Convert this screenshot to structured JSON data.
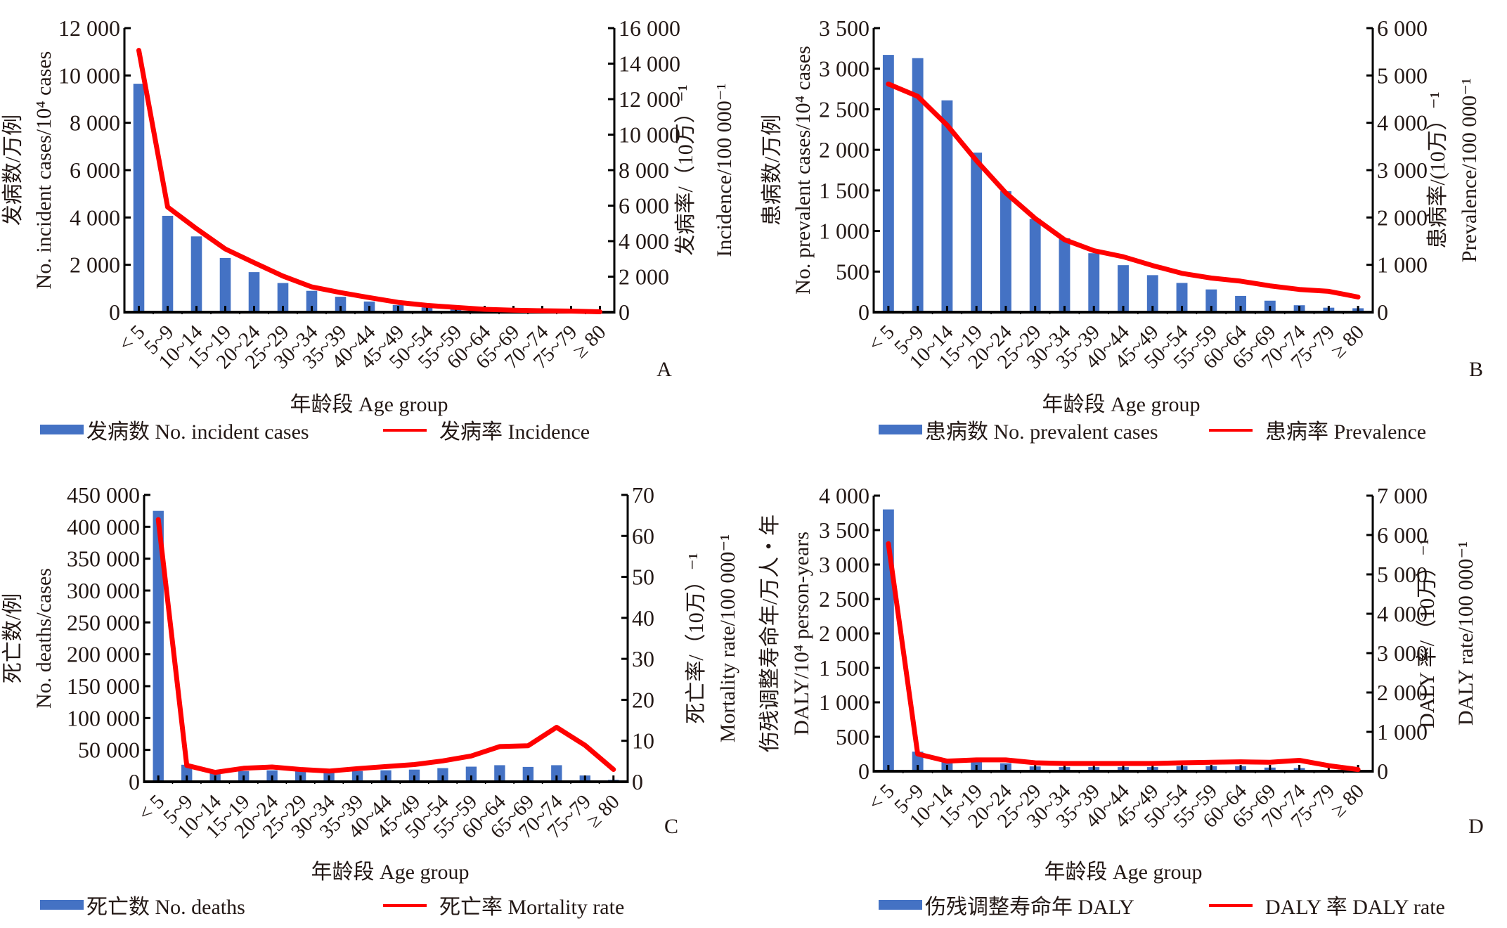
{
  "colors": {
    "bar": "#4472C4",
    "line": "#FF0000",
    "axis": "#000000",
    "text": "#231815"
  },
  "chart_data": [
    {
      "panel": "A",
      "type": "bar",
      "categories": [
        "< 5",
        "5~9",
        "10~14",
        "15~19",
        "20~24",
        "25~29",
        "30~34",
        "35~39",
        "40~44",
        "45~49",
        "50~54",
        "55~59",
        "60~64",
        "65~69",
        "70~74",
        "75~79",
        "≥ 80"
      ],
      "xlabel": "年龄段  Age group",
      "ylabel_cn": "发病数/万例",
      "ylabel_en": "No.  incident  cases/10⁴  cases",
      "y2label_cn": "发病率/（10万）⁻¹",
      "y2label_en": "Incidence/100 000⁻¹",
      "ylim": [
        0,
        12000
      ],
      "yticks": [
        0,
        2000,
        4000,
        6000,
        8000,
        10000,
        12000
      ],
      "ytick_labels": [
        "0",
        "2 000",
        "4 000",
        "6 000",
        "8 000",
        "10 000",
        "12 000"
      ],
      "y2lim": [
        0,
        16000
      ],
      "y2ticks": [
        0,
        2000,
        4000,
        6000,
        8000,
        10000,
        12000,
        14000,
        16000
      ],
      "y2tick_labels": [
        "0",
        "2 000",
        "4 000",
        "6 000",
        "8 000",
        "10 000",
        "12 000",
        "14 000",
        "16 000"
      ],
      "series": [
        {
          "name": "发病数  No.  incident  cases",
          "type": "bar",
          "axis": "left",
          "values": [
            9650,
            4070,
            3200,
            2290,
            1690,
            1230,
            900,
            650,
            450,
            300,
            200,
            130,
            80,
            50,
            30,
            20,
            10
          ]
        },
        {
          "name": "发病率  Incidence",
          "type": "line",
          "axis": "right",
          "values": [
            14750,
            5920,
            4700,
            3560,
            2790,
            2030,
            1420,
            1100,
            820,
            550,
            380,
            270,
            160,
            110,
            80,
            60,
            20
          ]
        }
      ],
      "legend_position": "bottom",
      "grid": false
    },
    {
      "panel": "B",
      "type": "bar",
      "categories": [
        "< 5",
        "5~9",
        "10~14",
        "15~19",
        "20~24",
        "25~29",
        "30~34",
        "35~39",
        "40~44",
        "45~49",
        "50~54",
        "55~59",
        "60~64",
        "65~69",
        "70~74",
        "75~79",
        "≥ 80"
      ],
      "xlabel": "年龄段  Age group",
      "ylabel_cn": "患病数/万例",
      "ylabel_en": "No.  prevalent  cases/10⁴  cases",
      "y2label_cn": "患病率/(10万）⁻¹",
      "y2label_en": "Prevalence/100 000⁻¹",
      "ylim": [
        0,
        3500
      ],
      "yticks": [
        0,
        500,
        1000,
        1500,
        2000,
        2500,
        3000,
        3500
      ],
      "ytick_labels": [
        "0",
        "500",
        "1 000",
        "1 500",
        "2 000",
        "2 500",
        "3 000",
        "3 500"
      ],
      "y2lim": [
        0,
        6000
      ],
      "y2ticks": [
        0,
        1000,
        2000,
        3000,
        4000,
        5000,
        6000
      ],
      "y2tick_labels": [
        "0",
        "1 000",
        "2 000",
        "3 000",
        "4 000",
        "5 000",
        "6 000"
      ],
      "series": [
        {
          "name": "患病数  No.  prevalent  cases",
          "type": "bar",
          "axis": "left",
          "values": [
            3170,
            3130,
            2610,
            1966,
            1490,
            1150,
            910,
            726,
            579,
            456,
            360,
            280,
            200,
            141,
            85,
            55,
            48
          ]
        },
        {
          "name": "患病率  Prevalence",
          "type": "line",
          "axis": "right",
          "values": [
            4820,
            4560,
            3950,
            3200,
            2520,
            1980,
            1530,
            1300,
            1170,
            985,
            820,
            720,
            655,
            555,
            480,
            440,
            320
          ]
        }
      ],
      "legend_position": "bottom",
      "grid": false
    },
    {
      "panel": "C",
      "type": "bar",
      "categories": [
        "< 5",
        "5~9",
        "10~14",
        "15~19",
        "20~24",
        "25~29",
        "30~34",
        "35~39",
        "40~44",
        "45~49",
        "50~54",
        "55~59",
        "60~64",
        "65~69",
        "70~74",
        "75~79",
        "≥ 80"
      ],
      "xlabel": "年龄段  Age group",
      "ylabel_cn": "死亡数/例",
      "ylabel_en": "No.  deaths/cases",
      "y2label_cn": "死亡率/（10万）⁻¹",
      "y2label_en": "Mortality  rate/100 000⁻¹",
      "ylim": [
        0,
        450000
      ],
      "yticks": [
        0,
        50000,
        100000,
        150000,
        200000,
        250000,
        300000,
        350000,
        400000,
        450000
      ],
      "ytick_labels": [
        "0",
        "50 000",
        "100 000",
        "150 000",
        "200 000",
        "250 000",
        "300 000",
        "350 000",
        "400 000",
        "450 000"
      ],
      "y2lim": [
        0,
        70
      ],
      "y2ticks": [
        0,
        10,
        20,
        30,
        40,
        50,
        60,
        70
      ],
      "y2tick_labels": [
        "0",
        "10",
        "20",
        "30",
        "40",
        "50",
        "60",
        "70"
      ],
      "series": [
        {
          "name": "死亡数  No.  deaths",
          "type": "bar",
          "axis": "left",
          "values": [
            425000,
            26700,
            16000,
            16800,
            18000,
            16800,
            15300,
            16800,
            18000,
            19100,
            21400,
            23700,
            26000,
            23300,
            26000,
            9900,
            3100
          ]
        },
        {
          "name": "死亡率  Mortality  rate",
          "type": "line",
          "axis": "right",
          "values": [
            64.0,
            4.0,
            2.3,
            3.3,
            3.6,
            3.0,
            2.6,
            3.2,
            3.7,
            4.2,
            5.1,
            6.3,
            8.6,
            8.8,
            13.3,
            8.9,
            3.0
          ]
        }
      ],
      "legend_position": "bottom",
      "grid": false
    },
    {
      "panel": "D",
      "type": "bar",
      "categories": [
        "< 5",
        "5~9",
        "10~14",
        "15~19",
        "20~24",
        "25~29",
        "30~34",
        "35~39",
        "40~44",
        "45~49",
        "50~54",
        "55~59",
        "60~64",
        "65~69",
        "70~74",
        "75~79",
        "≥ 80"
      ],
      "xlabel": "年龄段  Age group",
      "ylabel_cn": "伤残调整寿命年/万人・年",
      "ylabel_en": "DALY/10⁴  person-years",
      "y2label_cn": "DALY 率/（10万）⁻¹",
      "y2label_en": "DALY  rate/100 000⁻¹",
      "ylim": [
        0,
        4000
      ],
      "yticks": [
        0,
        500,
        1000,
        1500,
        2000,
        2500,
        3000,
        3500,
        4000
      ],
      "ytick_labels": [
        "0",
        "500",
        "1 000",
        "1 500",
        "2 000",
        "2 500",
        "3 000",
        "3 500",
        "4 000"
      ],
      "y2lim": [
        0,
        7000
      ],
      "y2ticks": [
        0,
        1000,
        2000,
        3000,
        4000,
        5000,
        6000,
        7000
      ],
      "y2tick_labels": [
        "0",
        "1 000",
        "2 000",
        "3 000",
        "4 000",
        "5 000",
        "6 000",
        "7 000"
      ],
      "series": [
        {
          "name": "伤残调整寿命年  DALY",
          "type": "bar",
          "axis": "left",
          "values": [
            3800,
            284,
            140,
            150,
            116,
            70,
            60,
            60,
            60,
            60,
            74,
            74,
            74,
            53,
            46,
            11,
            4
          ]
        },
        {
          "name": "DALY 率  DALY  rate",
          "type": "line",
          "axis": "right",
          "values": [
            5780,
            437,
            257,
            287,
            288,
            215,
            196,
            196,
            196,
            196,
            215,
            227,
            239,
            227,
            276,
            141,
            43
          ]
        }
      ],
      "legend_position": "bottom",
      "grid": false
    }
  ]
}
